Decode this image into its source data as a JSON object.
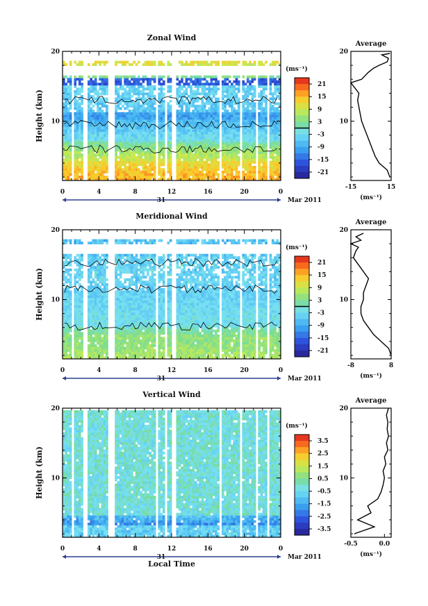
{
  "chart_data": [
    {
      "type": "heatmap",
      "title": "Zonal Wind",
      "ylabel": "Height (km)",
      "xlabel": "",
      "x_ticks": [
        "0",
        "4",
        "8",
        "12",
        "16",
        "20",
        "0"
      ],
      "y_ticks": [
        "10",
        "20"
      ],
      "xlim": [
        0,
        24
      ],
      "ylim": [
        1.5,
        20
      ],
      "date_label": "31",
      "month_label": "Mar 2011",
      "colorbar": {
        "unit": "(ms⁻¹)",
        "ticks": [
          "21",
          "15",
          "9",
          "3",
          "-3",
          "-9",
          "-15",
          "-21"
        ],
        "range": [
          -24,
          24
        ],
        "contour_at": 0
      },
      "profile": {
        "title": "Average",
        "xlabel": "(ms⁻¹)",
        "x_ticks": [
          "-15",
          "15"
        ],
        "xlim": [
          -15,
          15
        ],
        "y_ticks": [
          "10",
          "20"
        ],
        "points": [
          [
            14,
            2
          ],
          [
            12,
            3
          ],
          [
            6,
            4
          ],
          [
            3,
            5
          ],
          [
            1,
            6
          ],
          [
            -1,
            7
          ],
          [
            -3,
            8
          ],
          [
            -5,
            9
          ],
          [
            -7,
            10
          ],
          [
            -8,
            11
          ],
          [
            -9,
            12
          ],
          [
            -10,
            13
          ],
          [
            -9,
            14
          ],
          [
            -13,
            15
          ],
          [
            -15,
            15.5
          ],
          [
            -7,
            16
          ],
          [
            -2,
            17
          ],
          [
            2,
            17.6
          ],
          [
            6,
            18
          ],
          [
            12,
            18.5
          ],
          [
            13,
            19
          ],
          [
            8,
            19.5
          ],
          [
            14,
            19.7
          ]
        ]
      },
      "profile_units": "(ms⁻¹)"
    },
    {
      "type": "heatmap",
      "title": "Meridional Wind",
      "ylabel": "Height (km)",
      "xlabel": "",
      "x_ticks": [
        "0",
        "4",
        "8",
        "12",
        "16",
        "20",
        "0"
      ],
      "y_ticks": [
        "10",
        "20"
      ],
      "xlim": [
        0,
        24
      ],
      "ylim": [
        1.5,
        20
      ],
      "date_label": "31",
      "month_label": "Mar 2011",
      "colorbar": {
        "unit": "(ms⁻¹)",
        "ticks": [
          "21",
          "15",
          "9",
          "3",
          "-3",
          "-9",
          "-15",
          "-21"
        ],
        "range": [
          -24,
          24
        ],
        "contour_at": 0
      },
      "profile": {
        "title": "Average",
        "xlabel": "(ms⁻¹)",
        "x_ticks": [
          "-8",
          "8"
        ],
        "xlim": [
          -8,
          8
        ],
        "y_ticks": [
          "10",
          "20"
        ],
        "points": [
          [
            8,
            2
          ],
          [
            7,
            3
          ],
          [
            4,
            4
          ],
          [
            1,
            5
          ],
          [
            -1,
            6
          ],
          [
            -3,
            7
          ],
          [
            -4,
            8
          ],
          [
            -4,
            9
          ],
          [
            -3,
            10
          ],
          [
            -3,
            11
          ],
          [
            -2,
            12
          ],
          [
            -1,
            13
          ],
          [
            -3,
            14
          ],
          [
            -5,
            15
          ],
          [
            -7,
            16
          ],
          [
            -6,
            17
          ],
          [
            -5,
            17.5
          ],
          [
            -8,
            18
          ],
          [
            -4,
            18.5
          ],
          [
            -6,
            19
          ],
          [
            -3,
            19.5
          ]
        ]
      },
      "profile_units": "(ms⁻¹)"
    },
    {
      "type": "heatmap",
      "title": "Vertical Wind",
      "ylabel": "Height (km)",
      "xlabel": "Local Time",
      "x_ticks": [
        "0",
        "4",
        "8",
        "12",
        "16",
        "20",
        "0"
      ],
      "y_ticks": [
        "10",
        "20"
      ],
      "xlim": [
        0,
        24
      ],
      "ylim": [
        1.5,
        20
      ],
      "date_label": "31",
      "month_label": "Mar 2011",
      "colorbar": {
        "unit": "(ms⁻¹)",
        "ticks": [
          "3.5",
          "2.5",
          "1.5",
          "0.5",
          "-0.5",
          "-1.5",
          "-2.5",
          "-3.5"
        ],
        "range": [
          -4,
          4
        ],
        "contour_at": null
      },
      "profile": {
        "title": "Average",
        "xlabel": "(ms⁻¹)",
        "x_ticks": [
          "-0.5",
          "0.0"
        ],
        "xlim": [
          -0.5,
          0.1
        ],
        "y_ticks": [
          "10",
          "20"
        ],
        "points": [
          [
            -0.45,
            2
          ],
          [
            -0.15,
            3
          ],
          [
            -0.4,
            4
          ],
          [
            -0.2,
            5
          ],
          [
            -0.25,
            6
          ],
          [
            -0.1,
            7
          ],
          [
            -0.05,
            8
          ],
          [
            -0.02,
            9
          ],
          [
            0.0,
            10
          ],
          [
            -0.02,
            11
          ],
          [
            0.02,
            12
          ],
          [
            0.0,
            13
          ],
          [
            0.05,
            14
          ],
          [
            0.03,
            15
          ],
          [
            0.06,
            16
          ],
          [
            0.04,
            17
          ],
          [
            0.05,
            18
          ],
          [
            0.03,
            19
          ],
          [
            0.06,
            20
          ]
        ]
      },
      "profile_units": "(ms⁻¹)"
    }
  ]
}
